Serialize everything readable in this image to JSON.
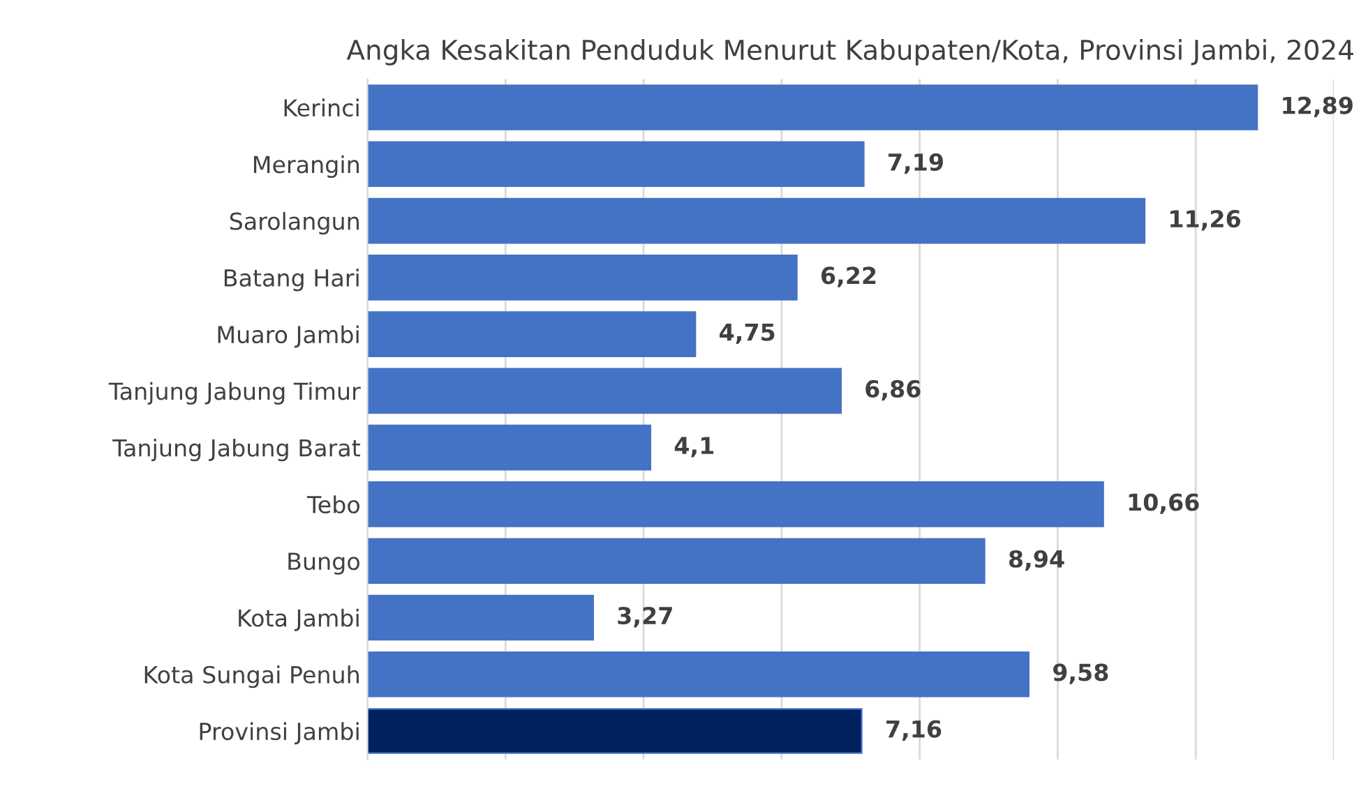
{
  "chart_data": {
    "type": "bar",
    "orientation": "horizontal",
    "title": "Angka Kesakitan Penduduk Menurut Kabupaten/Kota, Provinsi Jambi, 2024",
    "categories": [
      "Kerinci",
      "Merangin",
      "Sarolangun",
      "Batang Hari",
      "Muaro Jambi",
      "Tanjung Jabung Timur",
      "Tanjung Jabung Barat",
      "Tebo",
      "Bungo",
      "Kota Jambi",
      "Kota Sungai Penuh",
      "Provinsi Jambi"
    ],
    "values": [
      12.89,
      7.19,
      11.26,
      6.22,
      4.75,
      6.86,
      4.1,
      10.66,
      8.94,
      3.27,
      9.58,
      7.16
    ],
    "value_labels": [
      "12,89",
      "7,19",
      "11,26",
      "6,22",
      "4,75",
      "6,86",
      "4,1",
      "10,66",
      "8,94",
      "3,27",
      "9,58",
      "7,16"
    ],
    "colors": [
      "#4472c4",
      "#4472c4",
      "#4472c4",
      "#4472c4",
      "#4472c4",
      "#4472c4",
      "#4472c4",
      "#4472c4",
      "#4472c4",
      "#4472c4",
      "#4472c4",
      "#002060"
    ],
    "xlim": [
      0,
      14
    ],
    "xticks": [
      {
        "value": 0,
        "label": null
      },
      {
        "value": 2,
        "label": null
      },
      {
        "value": 4,
        "label": null
      },
      {
        "value": 6,
        "label": null
      },
      {
        "value": 8,
        "label": null
      },
      {
        "value": 10,
        "label": null
      },
      {
        "value": 12,
        "label": null
      },
      {
        "value": 14,
        "label": null
      }
    ],
    "grid": "x",
    "tick_labels": "y"
  }
}
